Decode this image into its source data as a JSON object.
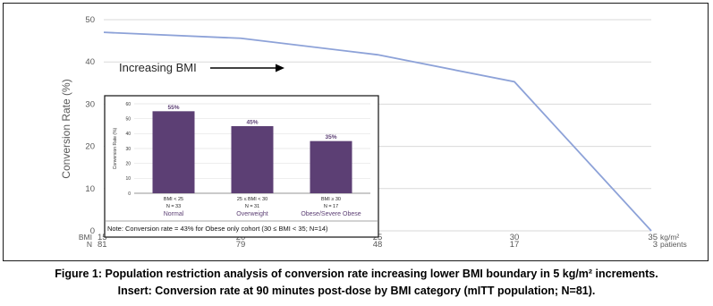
{
  "chart_data": [
    {
      "type": "line",
      "ylabel": "Conversion Rate (%)",
      "ylim": [
        0,
        50
      ],
      "yticks": [
        0,
        10,
        20,
        30,
        40,
        50
      ],
      "x": [
        15,
        20,
        25,
        30,
        35
      ],
      "x_labels": [
        "15",
        "20",
        "25",
        "30",
        "35"
      ],
      "n_labels": [
        "81",
        "79",
        "48",
        "17",
        "3"
      ],
      "x_row_label": "BMI",
      "n_row_label": "N",
      "x_unit": "kg/m²",
      "n_unit": "patients",
      "values": [
        47,
        45.6,
        41.7,
        35.3,
        0
      ],
      "grid": true,
      "annotation": "Increasing BMI",
      "line_color": "#8da2d8"
    },
    {
      "type": "bar",
      "ylabel": "Conversion Rate (%)",
      "ylim": [
        0,
        60
      ],
      "yticks": [
        0,
        10,
        20,
        30,
        40,
        50,
        60
      ],
      "categories": [
        "BMI < 25",
        "25 ≤ BMI < 30",
        "BMI ≥ 30"
      ],
      "n_labels": [
        "N = 33",
        "N = 31",
        "N = 17"
      ],
      "group_labels": [
        "Normal",
        "Overweight",
        "Obese/Severe Obese"
      ],
      "values": [
        55,
        45,
        35
      ],
      "value_labels": [
        "55%",
        "45%",
        "35%"
      ],
      "bar_color": "#5c3f74",
      "note": "Note: Conversion rate = 43% for Obese only cohort (30 ≤ BMI < 35; N=14)"
    }
  ],
  "caption": {
    "line1": "Figure 1: Population restriction analysis of conversion rate increasing lower BMI boundary in 5 kg/m² increments.",
    "line2": "Insert: Conversion rate at 90 minutes post-dose by BMI category (mITT population; N=81)."
  }
}
